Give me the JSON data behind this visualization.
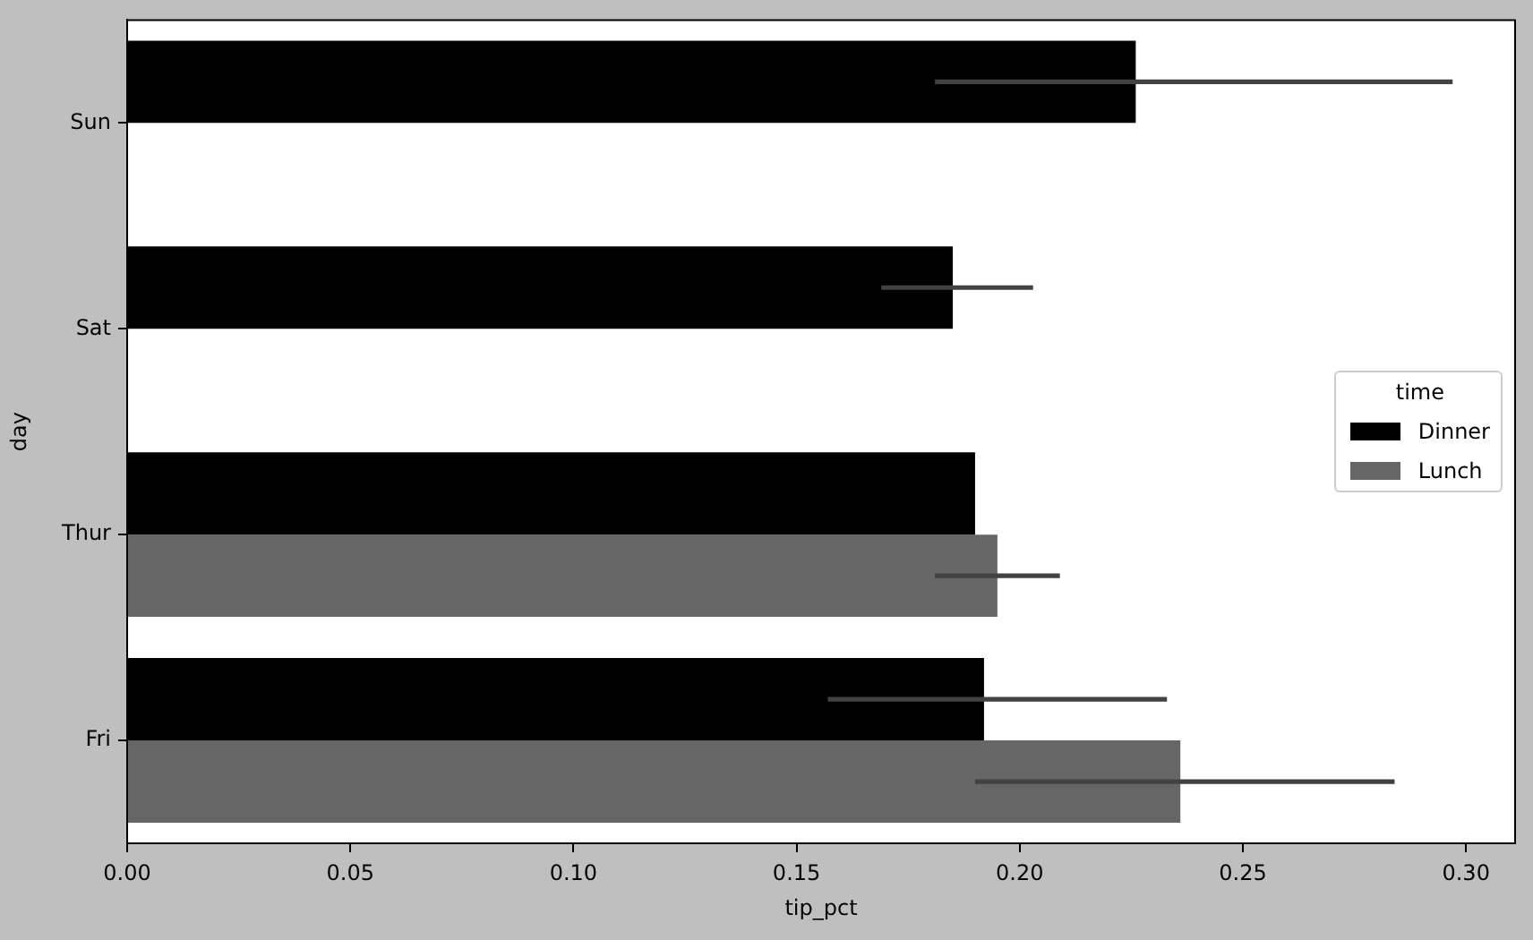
{
  "chart_data": {
    "type": "bar",
    "orientation": "horizontal",
    "xlabel": "tip_pct",
    "ylabel": "day",
    "legend_title": "time",
    "legend": "right",
    "categories": [
      "Sun",
      "Sat",
      "Thur",
      "Fri"
    ],
    "series": [
      {
        "name": "Dinner",
        "color": "#000000",
        "values": [
          0.226,
          0.185,
          0.19,
          0.192
        ],
        "errors": [
          [
            0.181,
            0.297
          ],
          [
            0.169,
            0.203
          ],
          null,
          [
            0.157,
            0.233
          ]
        ]
      },
      {
        "name": "Lunch",
        "color": "#666666",
        "values": [
          null,
          null,
          0.195,
          0.236
        ],
        "errors": [
          null,
          null,
          [
            0.181,
            0.209
          ],
          [
            0.19,
            0.284
          ]
        ]
      }
    ],
    "xlim": [
      0,
      0.311
    ],
    "xticks": [
      {
        "value": 0,
        "label": "0.00"
      },
      0.05,
      {
        "value": 0.1,
        "label": "0.10"
      },
      0.15,
      {
        "value": 0.2,
        "label": "0.20"
      },
      0.25,
      {
        "value": 0.3,
        "label": "0.30"
      }
    ]
  }
}
